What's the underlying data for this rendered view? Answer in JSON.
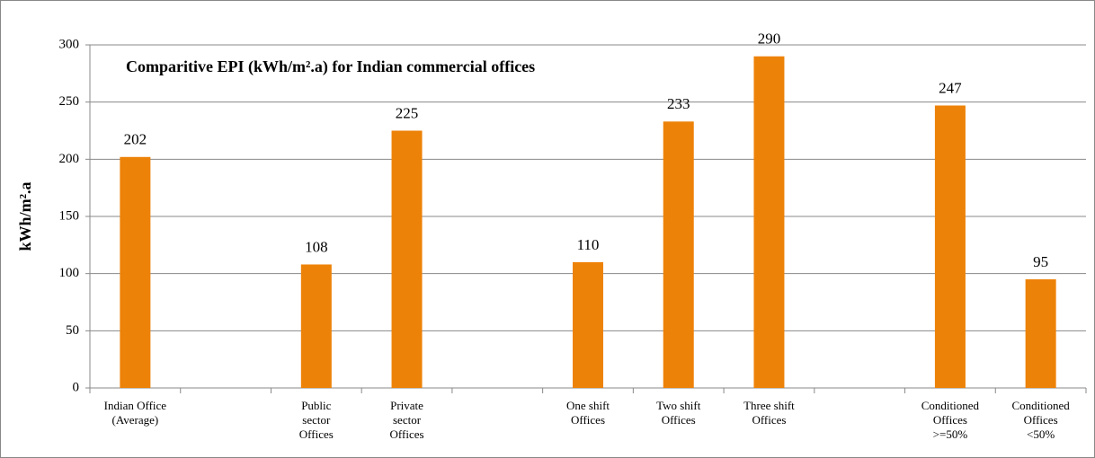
{
  "chart_data": {
    "type": "bar",
    "title": "Comparitive EPI (kWh/m².a) for Indian commercial offices",
    "y_label": "kWh/m².a",
    "categories": [
      "Indian Office\n(Average)",
      null,
      "Public\nsector\nOffices",
      "Private\nsector\nOffices",
      null,
      "One shift\nOffices",
      "Two shift\nOffices",
      "Three shift\nOffices",
      null,
      "Conditioned\nOffices\n>=50%",
      "Conditioned\nOffices\n<50%"
    ],
    "values": [
      202,
      null,
      108,
      225,
      null,
      110,
      233,
      290,
      null,
      247,
      95
    ],
    "color": "#ed8208",
    "ylim": [
      0,
      300
    ],
    "yticks": [
      0,
      50,
      100,
      150,
      200,
      250,
      300
    ],
    "grid": true
  }
}
